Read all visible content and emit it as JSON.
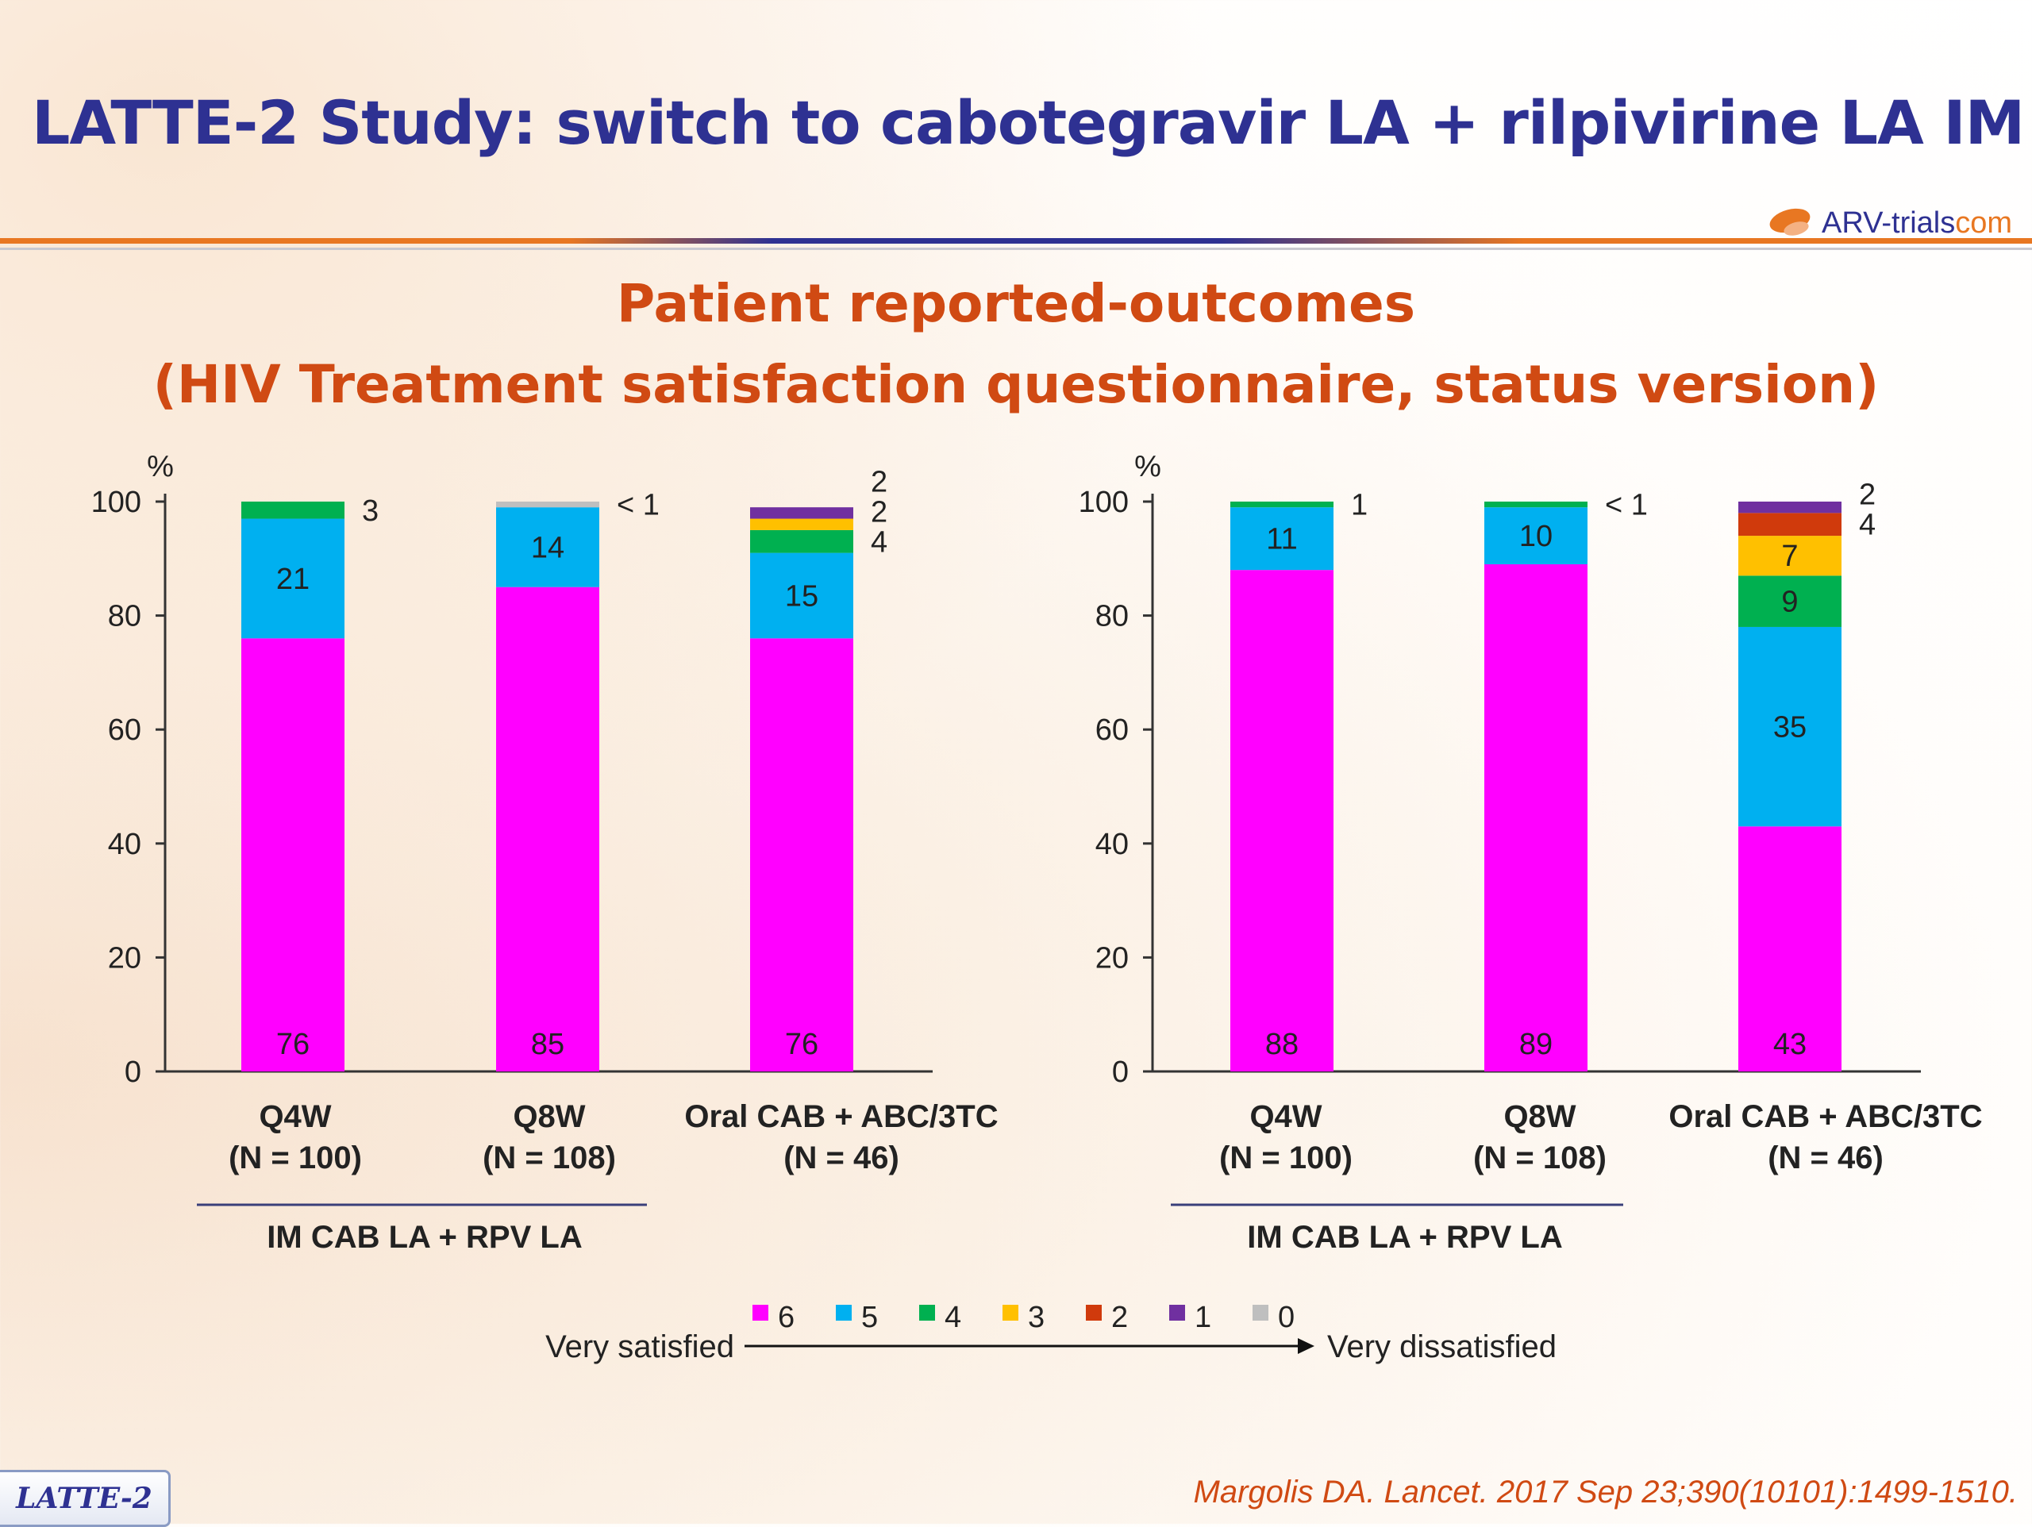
{
  "header": {
    "title": "LATTE-2 Study: switch to cabotegravir LA + rilpivirine LA IM",
    "logo_text": "ARV-trials",
    "logo_suffix": "com"
  },
  "subtitle": {
    "line1": "Patient reported-outcomes",
    "line2": "(HIV Treatment satisfaction questionnaire, status version)"
  },
  "legend": {
    "items": [
      {
        "label": "6",
        "color": "#ff00ff"
      },
      {
        "label": "5",
        "color": "#00b0f0"
      },
      {
        "label": "4",
        "color": "#00b050"
      },
      {
        "label": "3",
        "color": "#ffc000"
      },
      {
        "label": "2",
        "color": "#d03a0c"
      },
      {
        "label": "1",
        "color": "#7030a0"
      },
      {
        "label": "0",
        "color": "#bfbfbf"
      }
    ],
    "left_text": "Very satisfied",
    "right_text": "Very dissatisfied"
  },
  "chart_data": [
    {
      "type": "bar",
      "stacked": true,
      "ylabel": "%",
      "ylim": [
        0,
        100
      ],
      "yticks": [
        0,
        20,
        40,
        60,
        80,
        100
      ],
      "categories": [
        {
          "line1": "Q4W",
          "line2": "(N = 100)"
        },
        {
          "line1": "Q8W",
          "line2": "(N = 108)"
        },
        {
          "line1": "Oral CAB + ABC/3TC",
          "line2": "(N = 46)"
        }
      ],
      "group_label": "IM CAB LA + RPV LA",
      "series": [
        {
          "name": "6",
          "color": "#ff00ff",
          "values": [
            76,
            85,
            76
          ],
          "labels": [
            "76",
            "85",
            "76"
          ]
        },
        {
          "name": "5",
          "color": "#00b0f0",
          "values": [
            21,
            14,
            15
          ],
          "labels": [
            "21",
            "14",
            "15"
          ]
        },
        {
          "name": "4",
          "color": "#00b050",
          "values": [
            3,
            0,
            4
          ],
          "labels": [
            "3",
            "",
            "4"
          ]
        },
        {
          "name": "3",
          "color": "#ffc000",
          "values": [
            0,
            0,
            2
          ],
          "labels": [
            "",
            "",
            "2"
          ]
        },
        {
          "name": "2",
          "color": "#d03a0c",
          "values": [
            0,
            0,
            0
          ],
          "labels": [
            "",
            "",
            ""
          ]
        },
        {
          "name": "1",
          "color": "#7030a0",
          "values": [
            0,
            0,
            2
          ],
          "labels": [
            "",
            "",
            "2"
          ]
        },
        {
          "name": "0",
          "color": "#bfbfbf",
          "values": [
            0,
            1,
            0
          ],
          "labels": [
            "",
            "< 1",
            ""
          ]
        }
      ]
    },
    {
      "type": "bar",
      "stacked": true,
      "ylabel": "%",
      "ylim": [
        0,
        100
      ],
      "yticks": [
        0,
        20,
        40,
        60,
        80,
        100
      ],
      "categories": [
        {
          "line1": "Q4W",
          "line2": "(N = 100)"
        },
        {
          "line1": "Q8W",
          "line2": "(N = 108)"
        },
        {
          "line1": "Oral CAB + ABC/3TC",
          "line2": "(N = 46)"
        }
      ],
      "group_label": "IM CAB LA + RPV LA",
      "series": [
        {
          "name": "6",
          "color": "#ff00ff",
          "values": [
            88,
            89,
            43
          ],
          "labels": [
            "88",
            "89",
            "43"
          ]
        },
        {
          "name": "5",
          "color": "#00b0f0",
          "values": [
            11,
            10,
            35
          ],
          "labels": [
            "11",
            "10",
            "35"
          ]
        },
        {
          "name": "4",
          "color": "#00b050",
          "values": [
            1,
            1,
            9
          ],
          "labels": [
            "1",
            "< 1",
            "9"
          ]
        },
        {
          "name": "3",
          "color": "#ffc000",
          "values": [
            0,
            0,
            7
          ],
          "labels": [
            "",
            "",
            "7"
          ]
        },
        {
          "name": "2",
          "color": "#d03a0c",
          "values": [
            0,
            0,
            4
          ],
          "labels": [
            "",
            "",
            "4"
          ]
        },
        {
          "name": "1",
          "color": "#7030a0",
          "values": [
            0,
            0,
            2
          ],
          "labels": [
            "",
            "",
            "2"
          ]
        },
        {
          "name": "0",
          "color": "#bfbfbf",
          "values": [
            0,
            0,
            0
          ],
          "labels": [
            "",
            "",
            ""
          ]
        }
      ]
    }
  ],
  "footer": {
    "badge": "LATTE-2",
    "citation": "Margolis DA. Lancet. 2017 Sep 23;390(10101):1499-1510."
  }
}
